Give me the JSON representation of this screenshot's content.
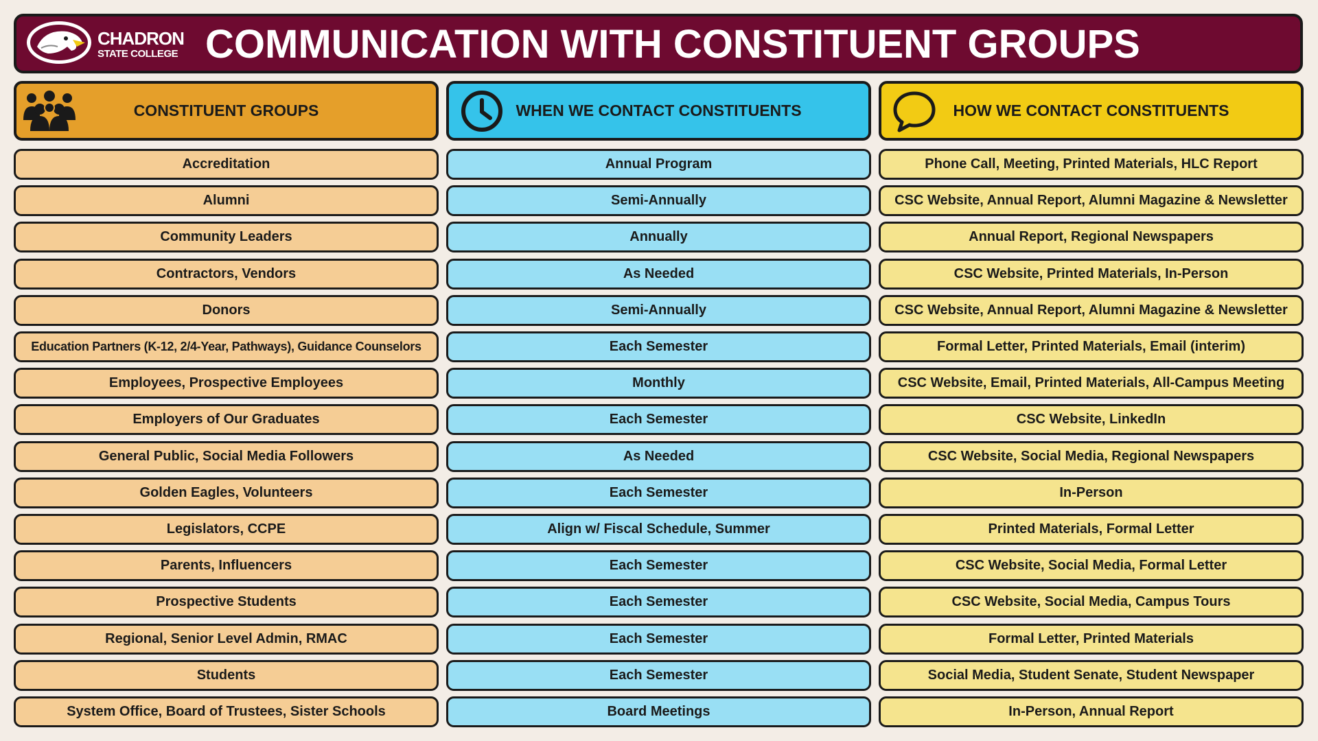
{
  "header": {
    "title": "COMMUNICATION WITH CONSTITUENT GROUPS",
    "logo": {
      "line1": "CHADRON",
      "line2": "STATE COLLEGE",
      "icon": "eagle-head-icon"
    }
  },
  "columns": [
    {
      "label": "CONSTITUENT GROUPS",
      "icon": "people-group-icon",
      "color": "#e59f2a",
      "cell_color": "#f5cd95"
    },
    {
      "label": "WHEN WE CONTACT CONSTITUENTS",
      "icon": "clock-icon",
      "color": "#35c3ea",
      "cell_color": "#99dff4"
    },
    {
      "label": "HOW WE CONTACT CONSTITUENTS",
      "icon": "speech-bubble-icon",
      "color": "#f2cb14",
      "cell_color": "#f5e48e"
    }
  ],
  "rows": [
    {
      "group": "Accreditation",
      "when": "Annual Program",
      "how": "Phone Call, Meeting, Printed Materials, HLC Report"
    },
    {
      "group": "Alumni",
      "when": "Semi-Annually",
      "how": "CSC Website, Annual Report, Alumni Magazine & Newsletter"
    },
    {
      "group": "Community Leaders",
      "when": "Annually",
      "how": "Annual Report, Regional Newspapers"
    },
    {
      "group": "Contractors, Vendors",
      "when": "As Needed",
      "how": "CSC Website, Printed Materials, In-Person"
    },
    {
      "group": "Donors",
      "when": "Semi-Annually",
      "how": "CSC Website, Annual Report, Alumni Magazine & Newsletter"
    },
    {
      "group": "Education Partners (K-12, 2/4-Year, Pathways), Guidance Counselors",
      "when": "Each Semester",
      "how": "Formal Letter, Printed Materials, Email (interim)"
    },
    {
      "group": "Employees, Prospective Employees",
      "when": "Monthly",
      "how": "CSC Website, Email, Printed Materials, All-Campus Meeting"
    },
    {
      "group": "Employers of Our Graduates",
      "when": "Each Semester",
      "how": "CSC Website, LinkedIn"
    },
    {
      "group": "General Public, Social Media Followers",
      "when": "As Needed",
      "how": "CSC Website, Social Media, Regional Newspapers"
    },
    {
      "group": "Golden Eagles, Volunteers",
      "when": "Each Semester",
      "how": "In-Person"
    },
    {
      "group": "Legislators, CCPE",
      "when": "Align w/ Fiscal Schedule, Summer",
      "how": "Printed Materials, Formal Letter"
    },
    {
      "group": "Parents, Influencers",
      "when": "Each Semester",
      "how": "CSC Website, Social Media, Formal Letter"
    },
    {
      "group": "Prospective Students",
      "when": "Each Semester",
      "how": "CSC Website, Social Media, Campus Tours"
    },
    {
      "group": "Regional, Senior Level Admin, RMAC",
      "when": "Each Semester",
      "how": "Formal Letter, Printed Materials"
    },
    {
      "group": "Students",
      "when": "Each Semester",
      "how": "Social Media, Student Senate, Student Newspaper"
    },
    {
      "group": "System Office, Board of Trustees, Sister Schools",
      "when": "Board Meetings",
      "how": "In-Person, Annual Report"
    }
  ]
}
